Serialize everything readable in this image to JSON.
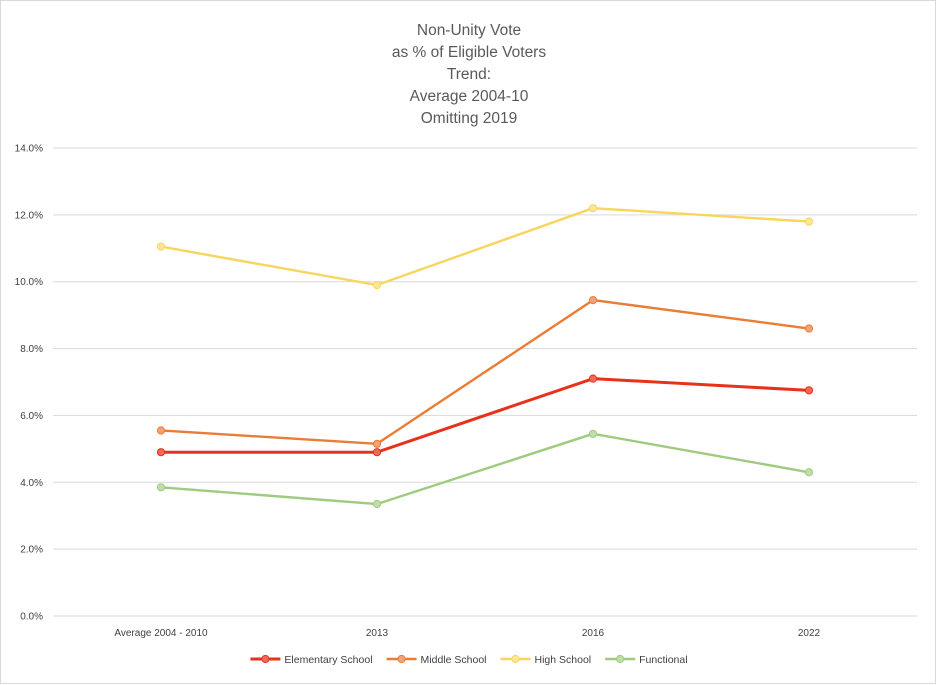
{
  "chart_data": {
    "type": "line",
    "title_lines": [
      "Non-Unity Vote",
      "as % of Eligible Voters",
      "Trend:",
      "Average 2004-10",
      "Omitting 2019"
    ],
    "categories": [
      "Average 2004 - 2010",
      "2013",
      "2016",
      "2022"
    ],
    "y_ticks": [
      "0.0%",
      "2.0%",
      "4.0%",
      "6.0%",
      "8.0%",
      "10.0%",
      "12.0%",
      "14.0%"
    ],
    "ylim": [
      0,
      14
    ],
    "grid": true,
    "legend_position": "bottom",
    "series": [
      {
        "name": "Elementary School",
        "values": [
          4.9,
          4.9,
          7.1,
          6.75
        ],
        "color": "#e8311a",
        "marker_fill": "#f06a5a",
        "stroke_width": 3
      },
      {
        "name": "Middle School",
        "values": [
          5.55,
          5.15,
          9.45,
          8.6
        ],
        "color": "#ea7d35",
        "marker_fill": "#f1a377",
        "stroke_width": 2.4
      },
      {
        "name": "High School",
        "values": [
          11.05,
          9.9,
          12.2,
          11.8
        ],
        "color": "#f7d55f",
        "marker_fill": "#fbe69a",
        "stroke_width": 2.4
      },
      {
        "name": "Functional",
        "values": [
          3.85,
          3.35,
          5.45,
          4.3
        ],
        "color": "#9fcb7e",
        "marker_fill": "#bfdfa8",
        "stroke_width": 2.4
      }
    ]
  }
}
